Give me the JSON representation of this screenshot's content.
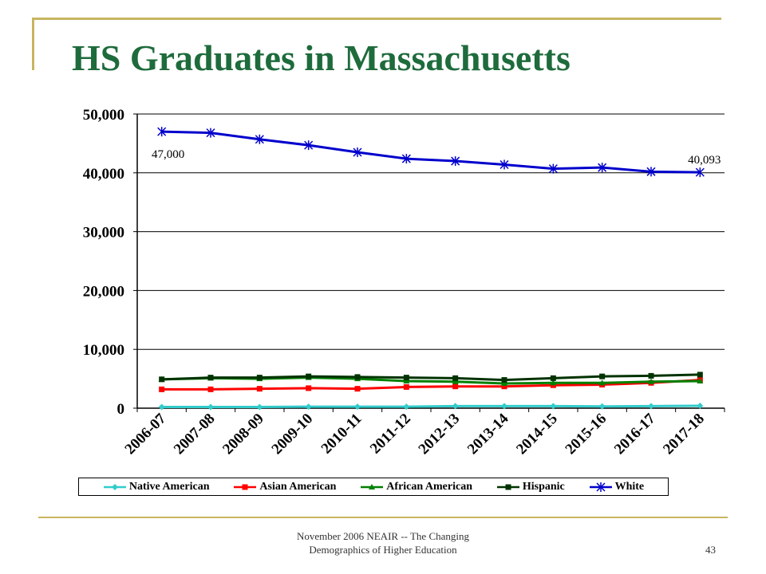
{
  "slide": {
    "title": "HS Graduates in Massachusetts",
    "footer_line1": "November 2006 NEAIR -- The Changing",
    "footer_line2": "Demographics of Higher Education",
    "page_number": "43"
  },
  "colors": {
    "title": "#1e6b3c",
    "accent_lines": "#c8b560"
  },
  "chart_data": {
    "type": "line",
    "title": "",
    "xlabel": "",
    "ylabel": "",
    "categories": [
      "2006-07",
      "2007-08",
      "2008-09",
      "2009-10",
      "2010-11",
      "2011-12",
      "2012-13",
      "2013-14",
      "2014-15",
      "2015-16",
      "2016-17",
      "2017-18"
    ],
    "ylim": [
      0,
      50000
    ],
    "yticks": [
      0,
      10000,
      20000,
      30000,
      40000,
      50000
    ],
    "ytick_labels": [
      "0",
      "10,000",
      "20,000",
      "30,000",
      "40,000",
      "50,000"
    ],
    "grid": true,
    "legend_position": "bottom",
    "series": [
      {
        "name": "Native American",
        "color": "#33cccc",
        "marker": "diamond",
        "values": [
          200,
          200,
          200,
          250,
          250,
          250,
          350,
          350,
          350,
          300,
          350,
          400
        ]
      },
      {
        "name": "Asian American",
        "color": "#ff0000",
        "marker": "square",
        "values": [
          3200,
          3200,
          3300,
          3400,
          3300,
          3600,
          3700,
          3700,
          3900,
          4000,
          4300,
          4800
        ]
      },
      {
        "name": "African American",
        "color": "#008000",
        "marker": "triangle",
        "values": [
          4900,
          5100,
          5000,
          5200,
          5000,
          4600,
          4500,
          4200,
          4300,
          4300,
          4500,
          4600
        ]
      },
      {
        "name": "Hispanic",
        "color": "#003300",
        "marker": "square",
        "values": [
          4900,
          5200,
          5200,
          5400,
          5300,
          5200,
          5100,
          4800,
          5100,
          5400,
          5500,
          5700
        ]
      },
      {
        "name": "White",
        "color": "#0000cc",
        "marker": "star",
        "values": [
          47000,
          46800,
          45700,
          44700,
          43500,
          42400,
          42000,
          41400,
          40700,
          40900,
          40200,
          40093
        ]
      }
    ],
    "annotations": [
      {
        "text": "47,000",
        "series": "White",
        "index": 0
      },
      {
        "text": "40,093",
        "series": "White",
        "index": 11
      }
    ]
  }
}
